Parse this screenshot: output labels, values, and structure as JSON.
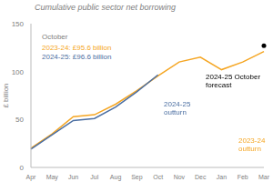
{
  "chart_data": {
    "type": "line",
    "title": "Cumulative public sector net borrowing",
    "y_label": "£ billion",
    "categories": [
      "Apr",
      "May",
      "Jun",
      "Jul",
      "Aug",
      "Sep",
      "Oct",
      "Nov",
      "Dec",
      "Jan",
      "Feb",
      "Mar"
    ],
    "series": [
      {
        "name": "2023-24 outturn",
        "color": "#F5A623",
        "values": [
          20,
          35,
          53,
          55,
          66,
          80,
          95.6,
          110,
          115,
          102,
          110,
          121
        ]
      },
      {
        "name": "2024-25 outturn",
        "color": "#4C6FA2",
        "values": [
          19,
          34,
          49,
          51,
          63,
          79,
          96.6,
          null,
          null,
          null,
          null,
          null
        ]
      },
      {
        "name": "2024-25 October forecast",
        "color": "#000000",
        "marker": "circle",
        "line_style": "none",
        "values": [
          null,
          null,
          null,
          null,
          null,
          null,
          null,
          null,
          null,
          null,
          null,
          127
        ]
      }
    ],
    "annotations": [
      {
        "text": "October",
        "color": "#808080"
      },
      {
        "text": "2023-24: £95.6 billion",
        "color": "#F5A623"
      },
      {
        "text": "2024-25: £96.6 billion",
        "color": "#4C6FA2"
      }
    ],
    "ylim": [
      0,
      150
    ],
    "yticks": [
      0,
      50,
      100,
      150
    ],
    "grid": false
  }
}
